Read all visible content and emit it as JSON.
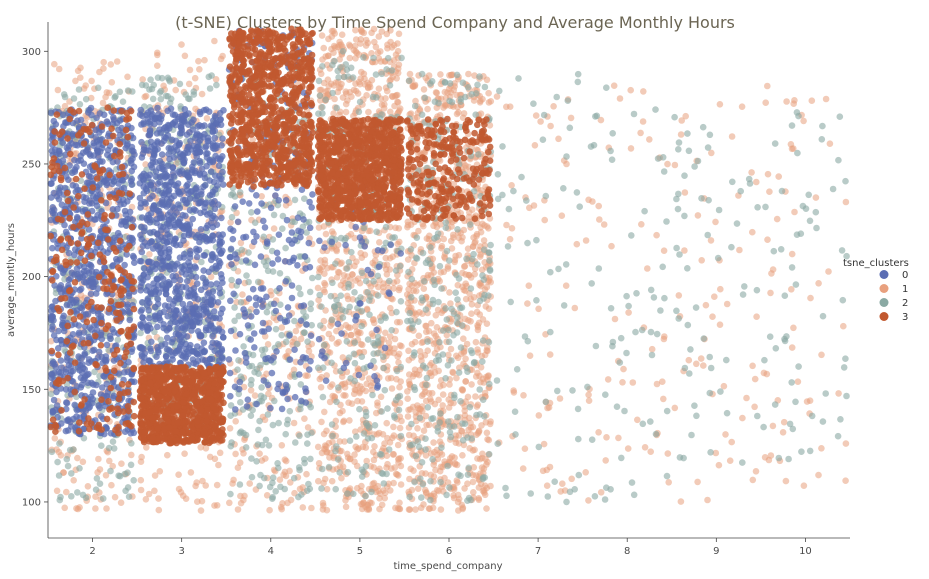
{
  "chart_data": {
    "type": "scatter",
    "title": "(t-SNE) Clusters by  Time Spend Company and Average Monthly Hours",
    "xlabel": "time_spend_company",
    "ylabel": "average_montly_hours",
    "xlim": [
      1.5,
      10.5
    ],
    "ylim": [
      84,
      313
    ],
    "xticks": [
      2,
      3,
      4,
      5,
      6,
      7,
      8,
      9,
      10
    ],
    "yticks": [
      100,
      150,
      200,
      250,
      300
    ],
    "grid": false,
    "legend_title": "tsne_clusters",
    "legend_position": "right",
    "jitter": true,
    "series": [
      {
        "name": "0",
        "color": "#5b6db3",
        "regions": [
          {
            "x": 2,
            "y_range": [
              130,
              275
            ],
            "density": "high"
          },
          {
            "x": 3,
            "y_range": [
              160,
              275
            ],
            "density": "high"
          },
          {
            "x": 4,
            "y_range": [
              140,
              310
            ],
            "density": "medium"
          },
          {
            "x": 5,
            "y_range": [
              150,
              260
            ],
            "density": "low"
          }
        ]
      },
      {
        "name": "1",
        "color": "#e8a07e",
        "regions": [
          {
            "x": 2,
            "y_range": [
              96,
              296
            ],
            "density": "medium"
          },
          {
            "x": 3,
            "y_range": [
              96,
              305
            ],
            "density": "medium"
          },
          {
            "x": 4,
            "y_range": [
              96,
              305
            ],
            "density": "medium"
          },
          {
            "x": 5,
            "y_range": [
              96,
              310
            ],
            "density": "high"
          },
          {
            "x": 6,
            "y_range": [
              96,
              290
            ],
            "density": "high"
          },
          {
            "x": 7,
            "y_range": [
              100,
              290
            ],
            "density": "low"
          },
          {
            "x": 8,
            "y_range": [
              100,
              285
            ],
            "density": "low"
          },
          {
            "x": 9,
            "y_range": [
              100,
              280
            ],
            "density": "low"
          },
          {
            "x": 10,
            "y_range": [
              100,
              285
            ],
            "density": "low"
          }
        ]
      },
      {
        "name": "2",
        "color": "#8aa9a3",
        "regions": [
          {
            "x": 2,
            "y_range": [
              100,
              285
            ],
            "density": "medium"
          },
          {
            "x": 3,
            "y_range": [
              130,
              290
            ],
            "density": "medium"
          },
          {
            "x": 4,
            "y_range": [
              100,
              300
            ],
            "density": "medium"
          },
          {
            "x": 5,
            "y_range": [
              100,
              300
            ],
            "density": "medium"
          },
          {
            "x": 6,
            "y_range": [
              100,
              290
            ],
            "density": "medium"
          },
          {
            "x": 7,
            "y_range": [
              100,
              290
            ],
            "density": "low"
          },
          {
            "x": 8,
            "y_range": [
              100,
              285
            ],
            "density": "low"
          },
          {
            "x": 9,
            "y_range": [
              115,
              275
            ],
            "density": "low"
          },
          {
            "x": 10,
            "y_range": [
              115,
              275
            ],
            "density": "low"
          }
        ]
      },
      {
        "name": "3",
        "color": "#c1582f",
        "regions": [
          {
            "x": 2,
            "y_range": [
              130,
              275
            ],
            "density": "medium"
          },
          {
            "x": 3,
            "y_range": [
              126,
              160
            ],
            "density": "high"
          },
          {
            "x": 4,
            "y_range": [
              240,
              310
            ],
            "density": "high"
          },
          {
            "x": 5,
            "y_range": [
              225,
              270
            ],
            "density": "high"
          },
          {
            "x": 6,
            "y_range": [
              225,
              270
            ],
            "density": "medium"
          }
        ]
      }
    ]
  }
}
